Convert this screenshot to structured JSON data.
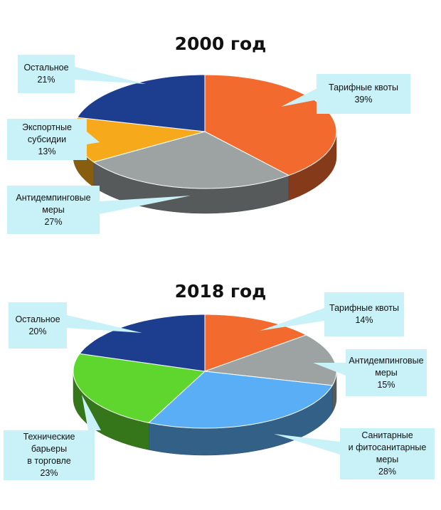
{
  "colors": {
    "tariff": "#f26a2e",
    "other": "#1d3d8f",
    "export": "#f7a91c",
    "antidumping": "#9da3a3",
    "sanitary": "#5aaef5",
    "technical": "#5fd62e",
    "callout_bg": "#c8f2f8"
  },
  "chart_data": [
    {
      "type": "pie",
      "title": "2000 год",
      "slices": [
        {
          "label_lines": [
            "Тарифные квоты"
          ],
          "value": 39,
          "value_label": "39%",
          "color": "#f26a2e"
        },
        {
          "label_lines": [
            "Антидемпинговые",
            "меры"
          ],
          "value": 27,
          "value_label": "27%",
          "color": "#9da3a3"
        },
        {
          "label_lines": [
            "Экспортные",
            "субсидии"
          ],
          "value": 13,
          "value_label": "13%",
          "color": "#f7a91c"
        },
        {
          "label_lines": [
            "Остальное"
          ],
          "value": 21,
          "value_label": "21%",
          "color": "#1d3d8f"
        }
      ]
    },
    {
      "type": "pie",
      "title": "2018 год",
      "slices": [
        {
          "label_lines": [
            "Тарифные квоты"
          ],
          "value": 14,
          "value_label": "14%",
          "color": "#f26a2e"
        },
        {
          "label_lines": [
            "Антидемпинговые",
            "меры"
          ],
          "value": 15,
          "value_label": "15%",
          "color": "#9da3a3"
        },
        {
          "label_lines": [
            "Санитарные",
            "и фитосанитарные меры"
          ],
          "value": 28,
          "value_label": "28%",
          "color": "#5aaef5"
        },
        {
          "label_lines": [
            "Технические барьеры",
            "в торговле"
          ],
          "value": 23,
          "value_label": "23%",
          "color": "#5fd62e"
        },
        {
          "label_lines": [
            "Остальное"
          ],
          "value": 20,
          "value_label": "20%",
          "color": "#1d3d8f"
        }
      ]
    }
  ]
}
